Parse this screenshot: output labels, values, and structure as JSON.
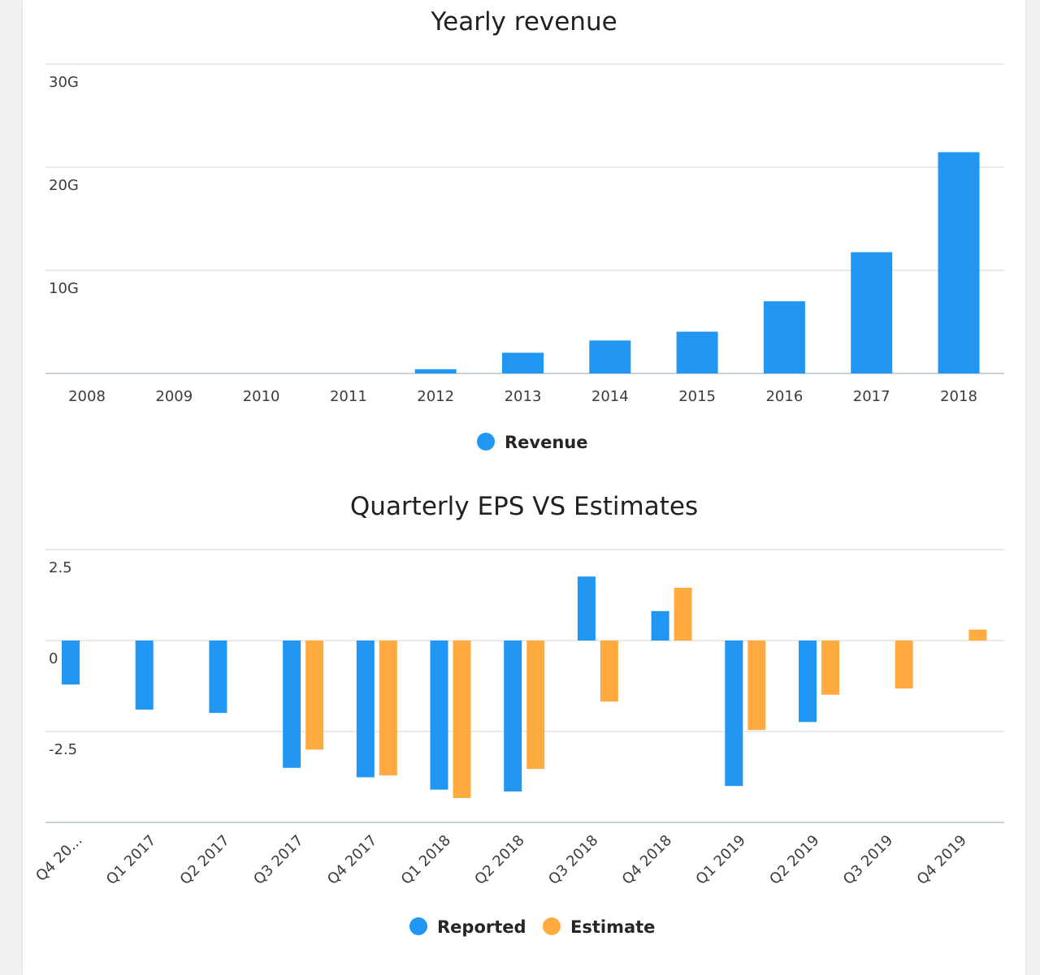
{
  "colors": {
    "revenue": "#2196F3",
    "reported": "#2196F3",
    "estimate": "#FFAB40",
    "grid": "#e3e3e3",
    "baseline": "#c7d3df"
  },
  "chart_data": [
    {
      "type": "bar",
      "title": "Yearly revenue",
      "categories": [
        "2008",
        "2009",
        "2010",
        "2011",
        "2012",
        "2013",
        "2014",
        "2015",
        "2016",
        "2017",
        "2018"
      ],
      "series": [
        {
          "name": "Revenue",
          "values": [
            0,
            0,
            0,
            0,
            0.41,
            2.01,
            3.2,
            4.05,
            7.0,
            11.76,
            21.46
          ]
        }
      ],
      "yunits": "G",
      "yticks": [
        10,
        20,
        30
      ],
      "ytick_labels": [
        "10G",
        "20G",
        "30G"
      ],
      "ylim": [
        0,
        30
      ],
      "legend": "bottom-center",
      "grid": true
    },
    {
      "type": "bar",
      "title": "Quarterly EPS VS Estimates",
      "categories": [
        "Q4 20...",
        "Q1 2017",
        "Q2 2017",
        "Q3 2017",
        "Q4 2017",
        "Q1 2018",
        "Q2 2018",
        "Q3 2018",
        "Q4 2018",
        "Q1 2019",
        "Q2 2019",
        "Q3 2019",
        "Q4 2019"
      ],
      "series": [
        {
          "name": "Reported",
          "values": [
            -1.21,
            -1.9,
            -1.99,
            -3.5,
            -3.76,
            -4.1,
            -4.15,
            1.76,
            0.81,
            -4.0,
            -2.24,
            null,
            null
          ]
        },
        {
          "name": "Estimate",
          "values": [
            null,
            null,
            null,
            -3.0,
            -3.71,
            -4.33,
            -3.53,
            -1.68,
            1.45,
            -2.46,
            -1.49,
            -1.32,
            0.3
          ]
        }
      ],
      "yticks": [
        -2.5,
        0,
        2.5
      ],
      "ytick_labels": [
        "-2.5",
        "0",
        "2.5"
      ],
      "ylim": [
        -5,
        2.5
      ],
      "legend": "bottom-center",
      "grid": true
    }
  ]
}
